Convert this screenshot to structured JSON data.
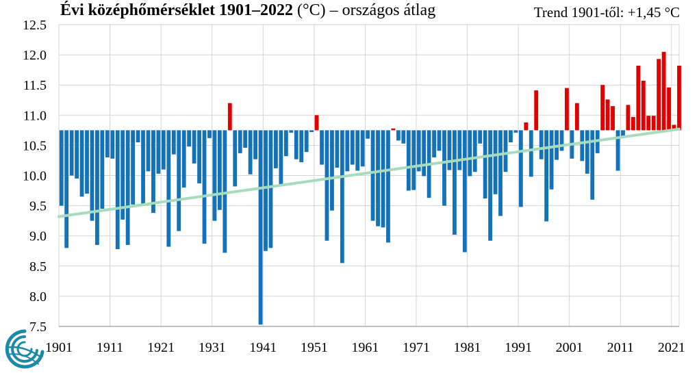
{
  "header": {
    "title_bold": "Évi középhőmérséklet 1901–2022",
    "title_rest": " (°C) – országos átlag",
    "trend_text": "Trend 1901-től: +1,45 °C"
  },
  "colors": {
    "below": "#1472b8",
    "above": "#e00000",
    "trend": "#a6dcbc",
    "grid": "#d4d4d4",
    "logo": "#1a8aa8"
  },
  "logo": {
    "name": "met-service-logo"
  },
  "chart_data": {
    "type": "bar",
    "title": "Évi középhőmérséklet 1901–2022 (°C) – országos átlag",
    "baseline": 10.75,
    "ylim": [
      7.5,
      12.5
    ],
    "yticks": [
      "7.5",
      "8.0",
      "8.5",
      "9.0",
      "9.5",
      "10.0",
      "10.5",
      "11.0",
      "11.5",
      "12.0",
      "12.5"
    ],
    "xticks": [
      1901,
      1911,
      1921,
      1931,
      1941,
      1951,
      1961,
      1971,
      1981,
      1991,
      2001,
      2011,
      2021
    ],
    "grid": true,
    "years": [
      1901,
      1902,
      1903,
      1904,
      1905,
      1906,
      1907,
      1908,
      1909,
      1910,
      1911,
      1912,
      1913,
      1914,
      1915,
      1916,
      1917,
      1918,
      1919,
      1920,
      1921,
      1922,
      1923,
      1924,
      1925,
      1926,
      1927,
      1928,
      1929,
      1930,
      1931,
      1932,
      1933,
      1934,
      1935,
      1936,
      1937,
      1938,
      1939,
      1940,
      1941,
      1942,
      1943,
      1944,
      1945,
      1946,
      1947,
      1948,
      1949,
      1950,
      1951,
      1952,
      1953,
      1954,
      1955,
      1956,
      1957,
      1958,
      1959,
      1960,
      1961,
      1962,
      1963,
      1964,
      1965,
      1966,
      1967,
      1968,
      1969,
      1970,
      1971,
      1972,
      1973,
      1974,
      1975,
      1976,
      1977,
      1978,
      1979,
      1980,
      1981,
      1982,
      1983,
      1984,
      1985,
      1986,
      1987,
      1988,
      1989,
      1990,
      1991,
      1992,
      1993,
      1994,
      1995,
      1996,
      1997,
      1998,
      1999,
      2000,
      2001,
      2002,
      2003,
      2004,
      2005,
      2006,
      2007,
      2008,
      2009,
      2010,
      2011,
      2012,
      2013,
      2014,
      2015,
      2016,
      2017,
      2018,
      2019,
      2020,
      2021,
      2022
    ],
    "values": [
      9.5,
      8.8,
      10.0,
      9.95,
      9.65,
      9.7,
      9.25,
      8.85,
      9.45,
      10.3,
      10.28,
      8.78,
      9.27,
      8.85,
      9.52,
      10.55,
      9.5,
      10.07,
      9.38,
      10.03,
      10.1,
      8.82,
      10.35,
      9.08,
      9.8,
      10.48,
      10.2,
      9.87,
      8.87,
      10.62,
      9.25,
      9.43,
      8.72,
      11.2,
      9.82,
      10.37,
      10.46,
      10.02,
      10.27,
      7.53,
      8.75,
      8.8,
      10.12,
      9.85,
      10.32,
      10.71,
      10.27,
      10.22,
      10.39,
      10.72,
      11.0,
      10.18,
      8.92,
      9.42,
      10.13,
      8.55,
      10.07,
      10.18,
      10.08,
      10.15,
      10.61,
      9.25,
      9.16,
      9.14,
      8.89,
      10.78,
      10.58,
      10.53,
      9.75,
      9.76,
      10.07,
      9.99,
      9.63,
      10.3,
      10.41,
      9.5,
      10.09,
      9.02,
      10.09,
      8.73,
      9.99,
      10.06,
      10.53,
      9.62,
      8.92,
      9.69,
      9.33,
      10.06,
      10.55,
      10.71,
      9.48,
      10.88,
      9.98,
      11.41,
      10.27,
      9.24,
      9.77,
      10.26,
      10.41,
      11.45,
      10.28,
      11.2,
      10.24,
      10.03,
      9.6,
      10.37,
      11.5,
      11.26,
      11.15,
      10.08,
      10.66,
      11.17,
      10.97,
      11.82,
      11.57,
      10.99,
      10.99,
      11.93,
      12.05,
      11.46,
      10.84,
      11.82
    ],
    "trend": {
      "start_year": 1901,
      "start_value": 9.32,
      "end_year": 2022,
      "end_value": 10.77
    }
  }
}
